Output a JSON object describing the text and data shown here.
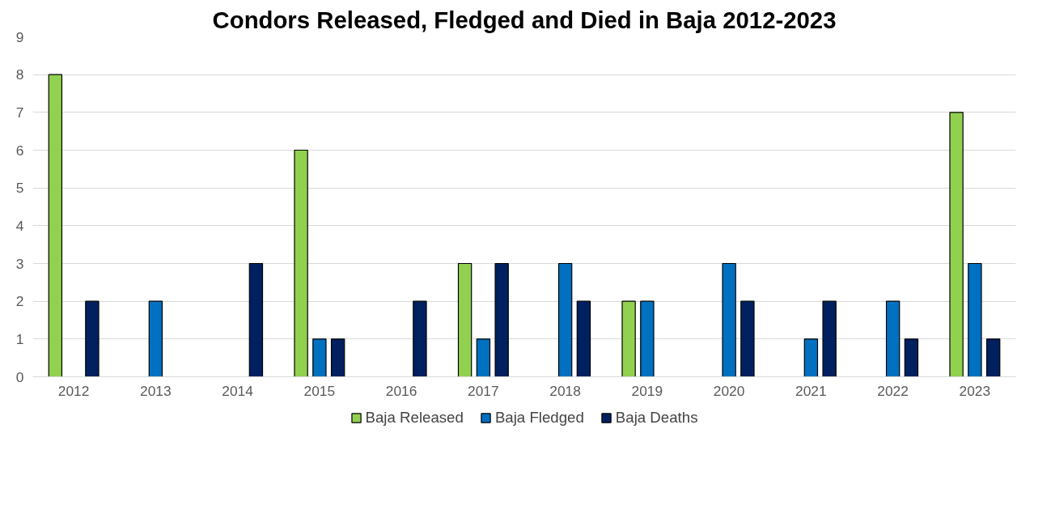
{
  "chart_data": {
    "type": "bar",
    "title": "Condors Released, Fledged and Died in Baja 2012-2023",
    "categories": [
      "2012",
      "2013",
      "2014",
      "2015",
      "2016",
      "2017",
      "2018",
      "2019",
      "2020",
      "2021",
      "2022",
      "2023"
    ],
    "series": [
      {
        "name": "Baja Released",
        "color": "#92d050",
        "values": [
          8,
          0,
          0,
          6,
          0,
          3,
          0,
          2,
          0,
          0,
          0,
          7
        ]
      },
      {
        "name": "Baja Fledged",
        "color": "#0070c0",
        "values": [
          0,
          2,
          0,
          1,
          0,
          1,
          3,
          2,
          3,
          1,
          2,
          3
        ]
      },
      {
        "name": "Baja Deaths",
        "color": "#002060",
        "values": [
          2,
          0,
          3,
          1,
          2,
          3,
          2,
          0,
          2,
          2,
          1,
          1
        ]
      }
    ],
    "ylim": [
      0,
      9
    ],
    "yticks": [
      0,
      1,
      2,
      3,
      4,
      5,
      6,
      7,
      8,
      9
    ],
    "grid": "y",
    "legend": "bottom"
  }
}
